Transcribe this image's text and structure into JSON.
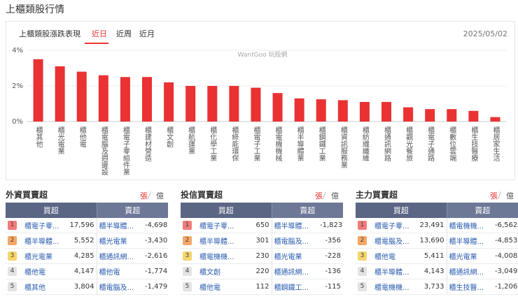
{
  "header": {
    "title": "上櫃類股行情"
  },
  "panel": {
    "title": "上櫃類股漲跌表現",
    "tabs": [
      "近日",
      "近周",
      "近月"
    ],
    "date": "2025/05/02",
    "watermark": "WantGoo 玩股網"
  },
  "chart_data": {
    "type": "bar",
    "categories": [
      "櫃其他",
      "櫃光電業",
      "櫃他電",
      "櫃電腦及週邊設",
      "櫃電子零組件業",
      "櫃建材營造",
      "櫃文創",
      "櫃航運業",
      "櫃化學工業",
      "櫃綠能環保",
      "櫃電子工業",
      "櫃電機機械",
      "櫃半導體業",
      "櫃鋼鐵工業",
      "櫃資訊服務業",
      "櫃紡織纖維",
      "櫃通訊網路",
      "櫃觀光餐旅",
      "櫃電子通路",
      "櫃數位雲端",
      "櫃生技醫療",
      "櫃居家生活"
    ],
    "values": [
      3.5,
      3.1,
      2.8,
      2.6,
      2.5,
      2.5,
      2.2,
      2.0,
      2.0,
      2.0,
      1.9,
      1.6,
      1.3,
      1.25,
      1.2,
      1.1,
      1.1,
      0.8,
      0.7,
      0.7,
      0.6,
      0.25
    ],
    "color": "#ea3232",
    "ylim": [
      0,
      4
    ],
    "yticks": [
      {
        "value": 0,
        "label": "0%"
      },
      {
        "value": 2,
        "label": "2%"
      },
      {
        "value": 4,
        "label": "4%"
      }
    ],
    "grid": true
  },
  "tables": [
    {
      "title": "外資買賣超",
      "units": [
        "張",
        "億"
      ],
      "columns": [
        "買超",
        "賣超"
      ],
      "rows": [
        [
          "1",
          "櫃電子零...",
          "17,596",
          "櫃半導體...",
          "-4,698"
        ],
        [
          "2",
          "櫃半導體...",
          "5,552",
          "櫃光電業",
          "-3,430"
        ],
        [
          "3",
          "櫃光電業",
          "4,285",
          "櫃通訊網...",
          "-2,616"
        ],
        [
          "4",
          "櫃他電",
          "4,147",
          "櫃他電",
          "-1,774"
        ],
        [
          "5",
          "櫃其他",
          "3,804",
          "櫃電腦及...",
          "-1,479"
        ]
      ]
    },
    {
      "title": "投信買賣超",
      "units": [
        "張",
        "億"
      ],
      "columns": [
        "買超",
        "賣超"
      ],
      "rows": [
        [
          "1",
          "櫃電子零...",
          "650",
          "櫃半導體...",
          "-1,823"
        ],
        [
          "2",
          "櫃半導體...",
          "301",
          "櫃電腦及...",
          "-356"
        ],
        [
          "3",
          "櫃電機機...",
          "230",
          "櫃光電業",
          "-228"
        ],
        [
          "4",
          "櫃文創",
          "220",
          "櫃通訊網...",
          "-136"
        ],
        [
          "5",
          "櫃他電",
          "112",
          "櫃鋼鐵工...",
          "-115"
        ]
      ]
    },
    {
      "title": "主力買賣超",
      "units": [
        "張",
        "億"
      ],
      "columns": [
        "買超",
        "賣超"
      ],
      "rows": [
        [
          "1",
          "櫃電子零...",
          "23,491",
          "櫃電機機...",
          "-6,562"
        ],
        [
          "2",
          "櫃電腦及...",
          "13,690",
          "櫃半導體...",
          "-4,853"
        ],
        [
          "3",
          "櫃他電",
          "5,411",
          "櫃光電業",
          "-4,008"
        ],
        [
          "4",
          "櫃半導體...",
          "4,143",
          "櫃通訊網...",
          "-3,049"
        ],
        [
          "5",
          "櫃電機機...",
          "3,733",
          "櫃生技醫...",
          "-1,206"
        ]
      ]
    }
  ]
}
